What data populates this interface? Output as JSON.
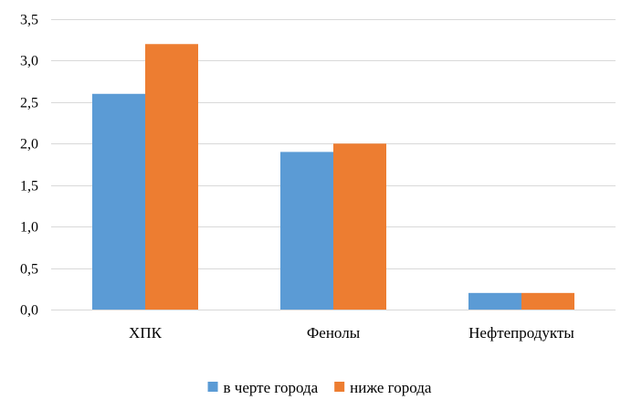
{
  "chart_data": {
    "type": "bar",
    "title": "",
    "xlabel": "",
    "ylabel": "",
    "categories": [
      "ХПК",
      "Фенолы",
      "Нефтепродукты"
    ],
    "series": [
      {
        "name": "в черте города",
        "values": [
          2.6,
          1.9,
          0.2
        ],
        "color": "#5B9BD5"
      },
      {
        "name": "ниже города",
        "values": [
          3.2,
          2.0,
          0.2
        ],
        "color": "#ED7D31"
      }
    ],
    "y_ticks": [
      "0,0",
      "0,5",
      "1,0",
      "1,5",
      "2,0",
      "2,5",
      "3,0",
      "3,5"
    ],
    "ylim": [
      0,
      3.5
    ],
    "y_step": 0.5,
    "grid": true,
    "gridline_color": "#D9D9D9",
    "legend_position": "bottom"
  }
}
